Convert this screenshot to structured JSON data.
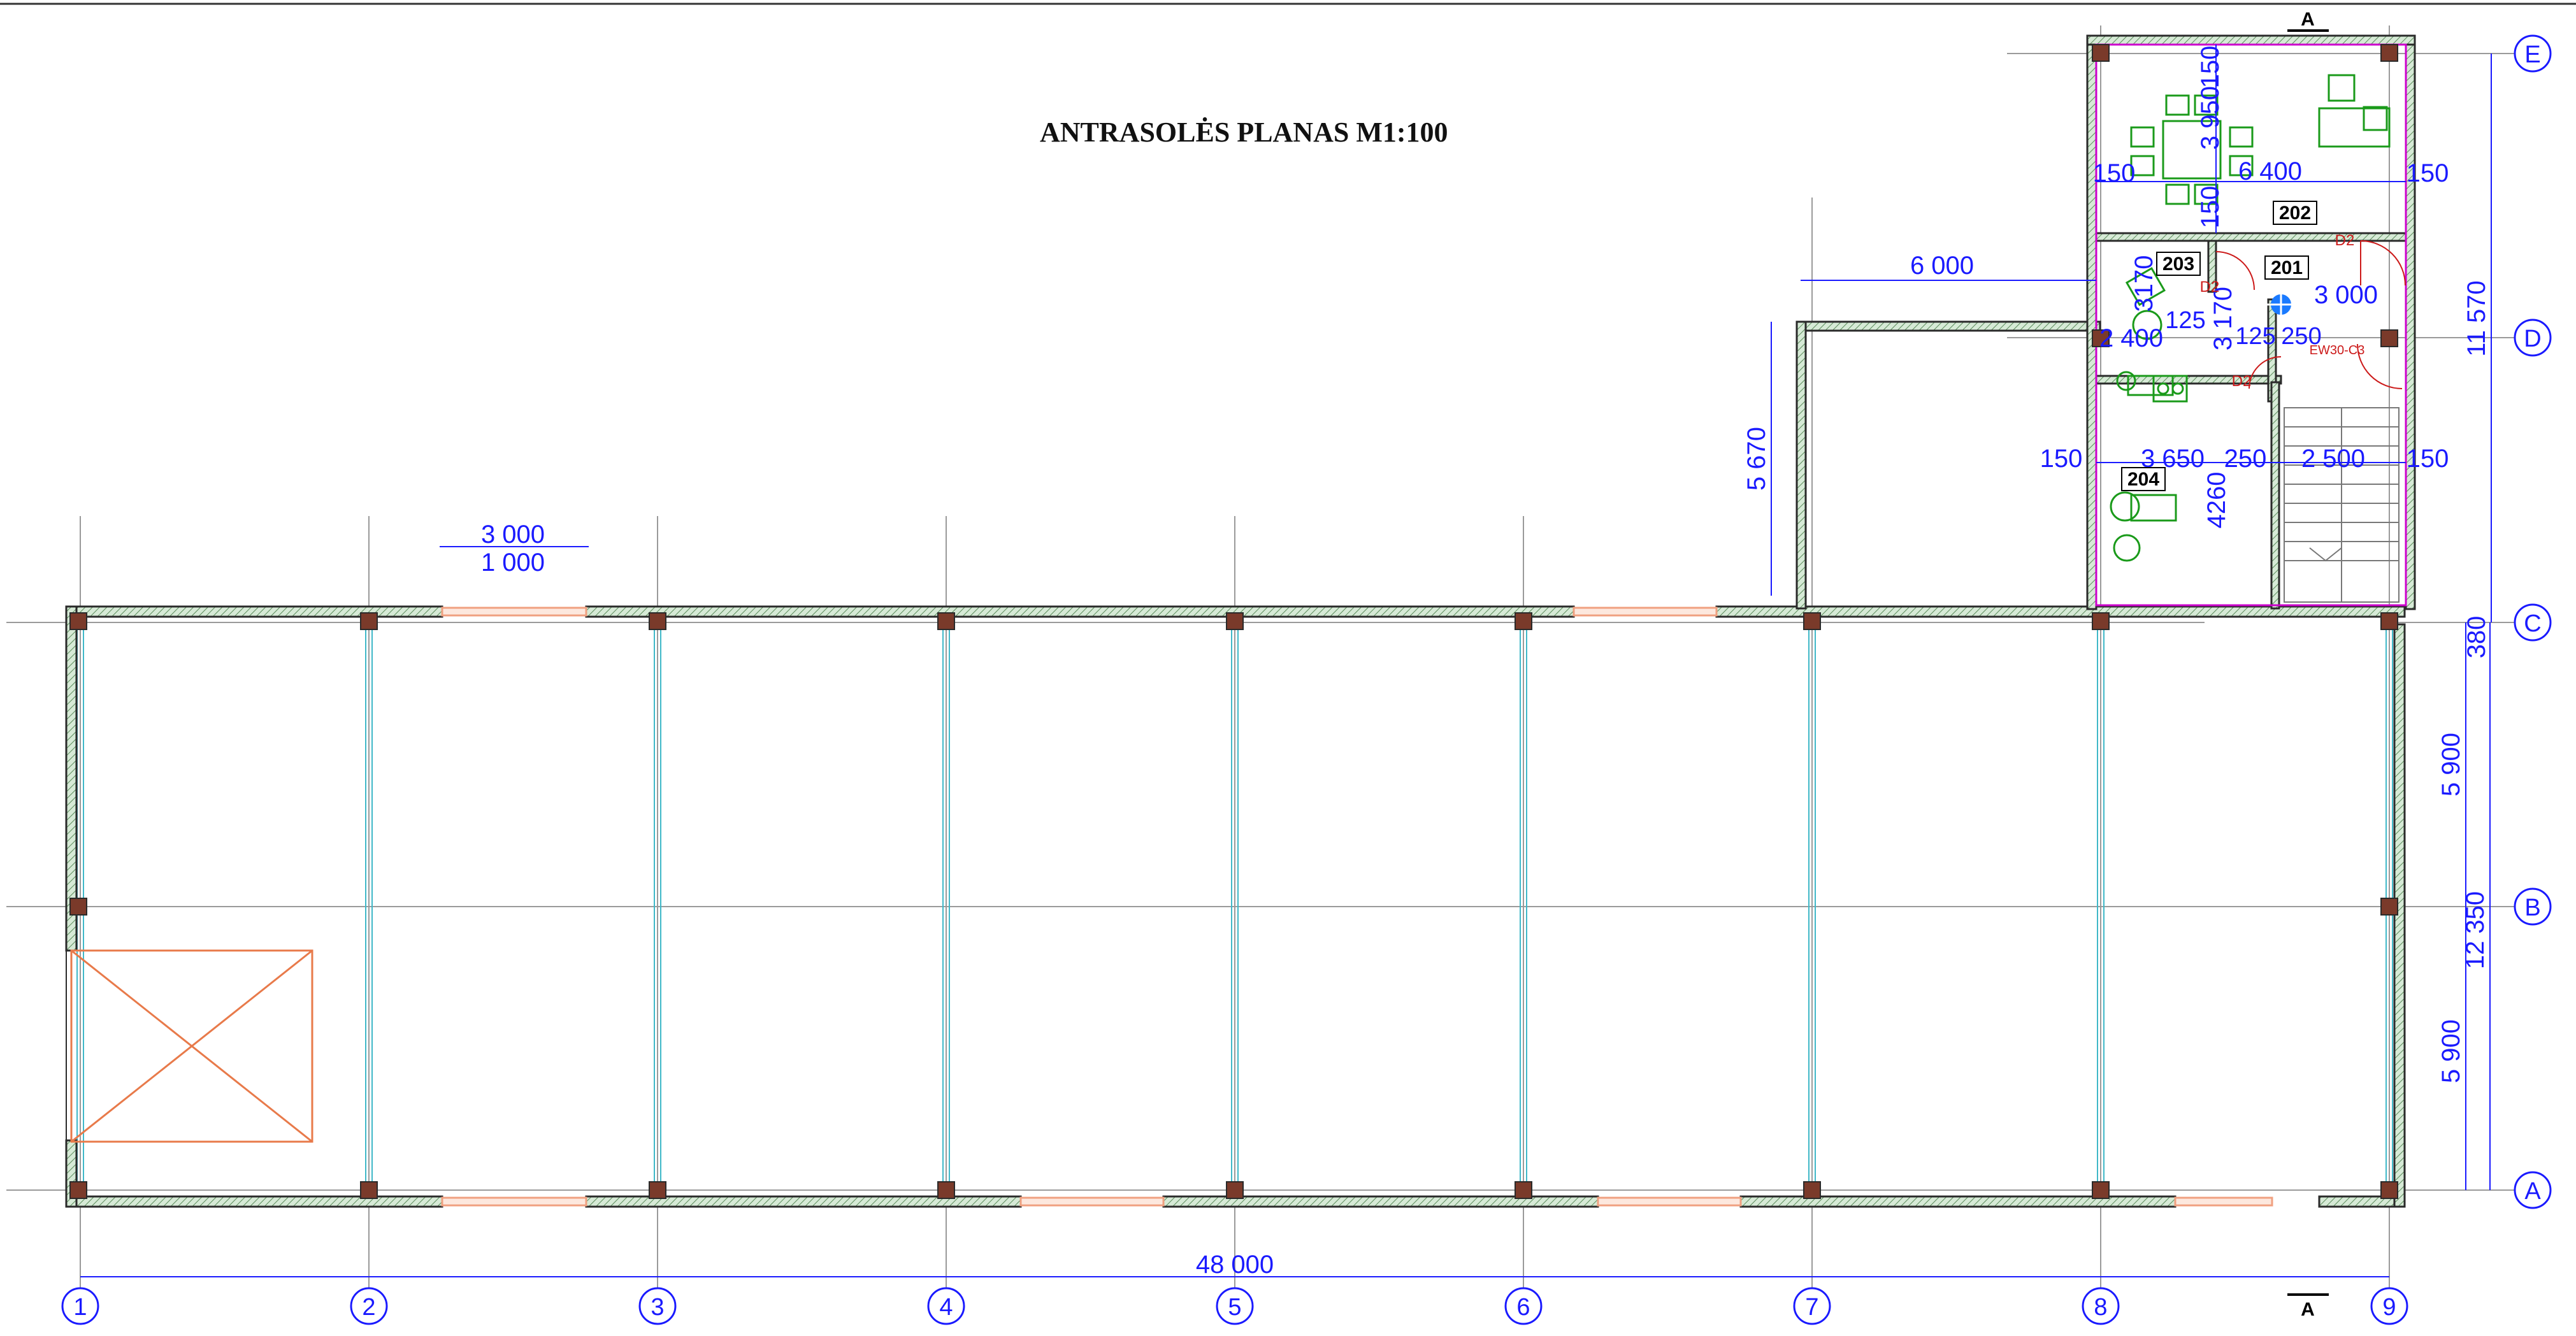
{
  "title": "ANTRASOLĖS PLANAS M1:100",
  "colors": {
    "wall": "#2a2a2a",
    "wall_fill": "#cfe7cf",
    "dimension": "#1a1aff",
    "grid_line": "#9a9a9a",
    "bracing": "#40b8c8",
    "window": "#f0a080",
    "room_outline": "#cc00cc",
    "door": "#cc1a1a",
    "furniture": "#1a9a1a",
    "stair_outline": "#777777"
  },
  "grid_axes": {
    "numbered": [
      "1",
      "2",
      "3",
      "4",
      "5",
      "6",
      "7",
      "8",
      "9"
    ],
    "lettered": [
      "A",
      "B",
      "C",
      "D",
      "E"
    ]
  },
  "section_marker": "A",
  "rooms": [
    "201",
    "202",
    "203",
    "204"
  ],
  "doors": [
    "D2",
    "D2",
    "D2",
    "EW30-C3"
  ],
  "dimensions": {
    "overall_length": "48 000",
    "opening_3000": "3 000",
    "opening_1000": "1 000",
    "annex_width": "6 000",
    "annex_depth": "5 670",
    "right_total": "11 570",
    "right_ab_total": "12 350",
    "bay_bc": "5 900",
    "bay_ab": "5 900",
    "offset_380": "380",
    "top_offset_150": "150",
    "room_3950": "3 950",
    "room_150": "150",
    "room_6400": "6 400",
    "left_150": "150",
    "right_150": "150",
    "row2_150": "150",
    "room_3170": "3170",
    "room_3170b": "3 170",
    "room_125": "125",
    "room_125b": "125",
    "room_250": "250",
    "room_3000": "3 000",
    "room_2400": "2 400",
    "room_150c": "150",
    "room_3650": "3 650",
    "room_250b": "250",
    "room_2500": "2 500",
    "room_150d": "150",
    "room_4260": "4260"
  }
}
